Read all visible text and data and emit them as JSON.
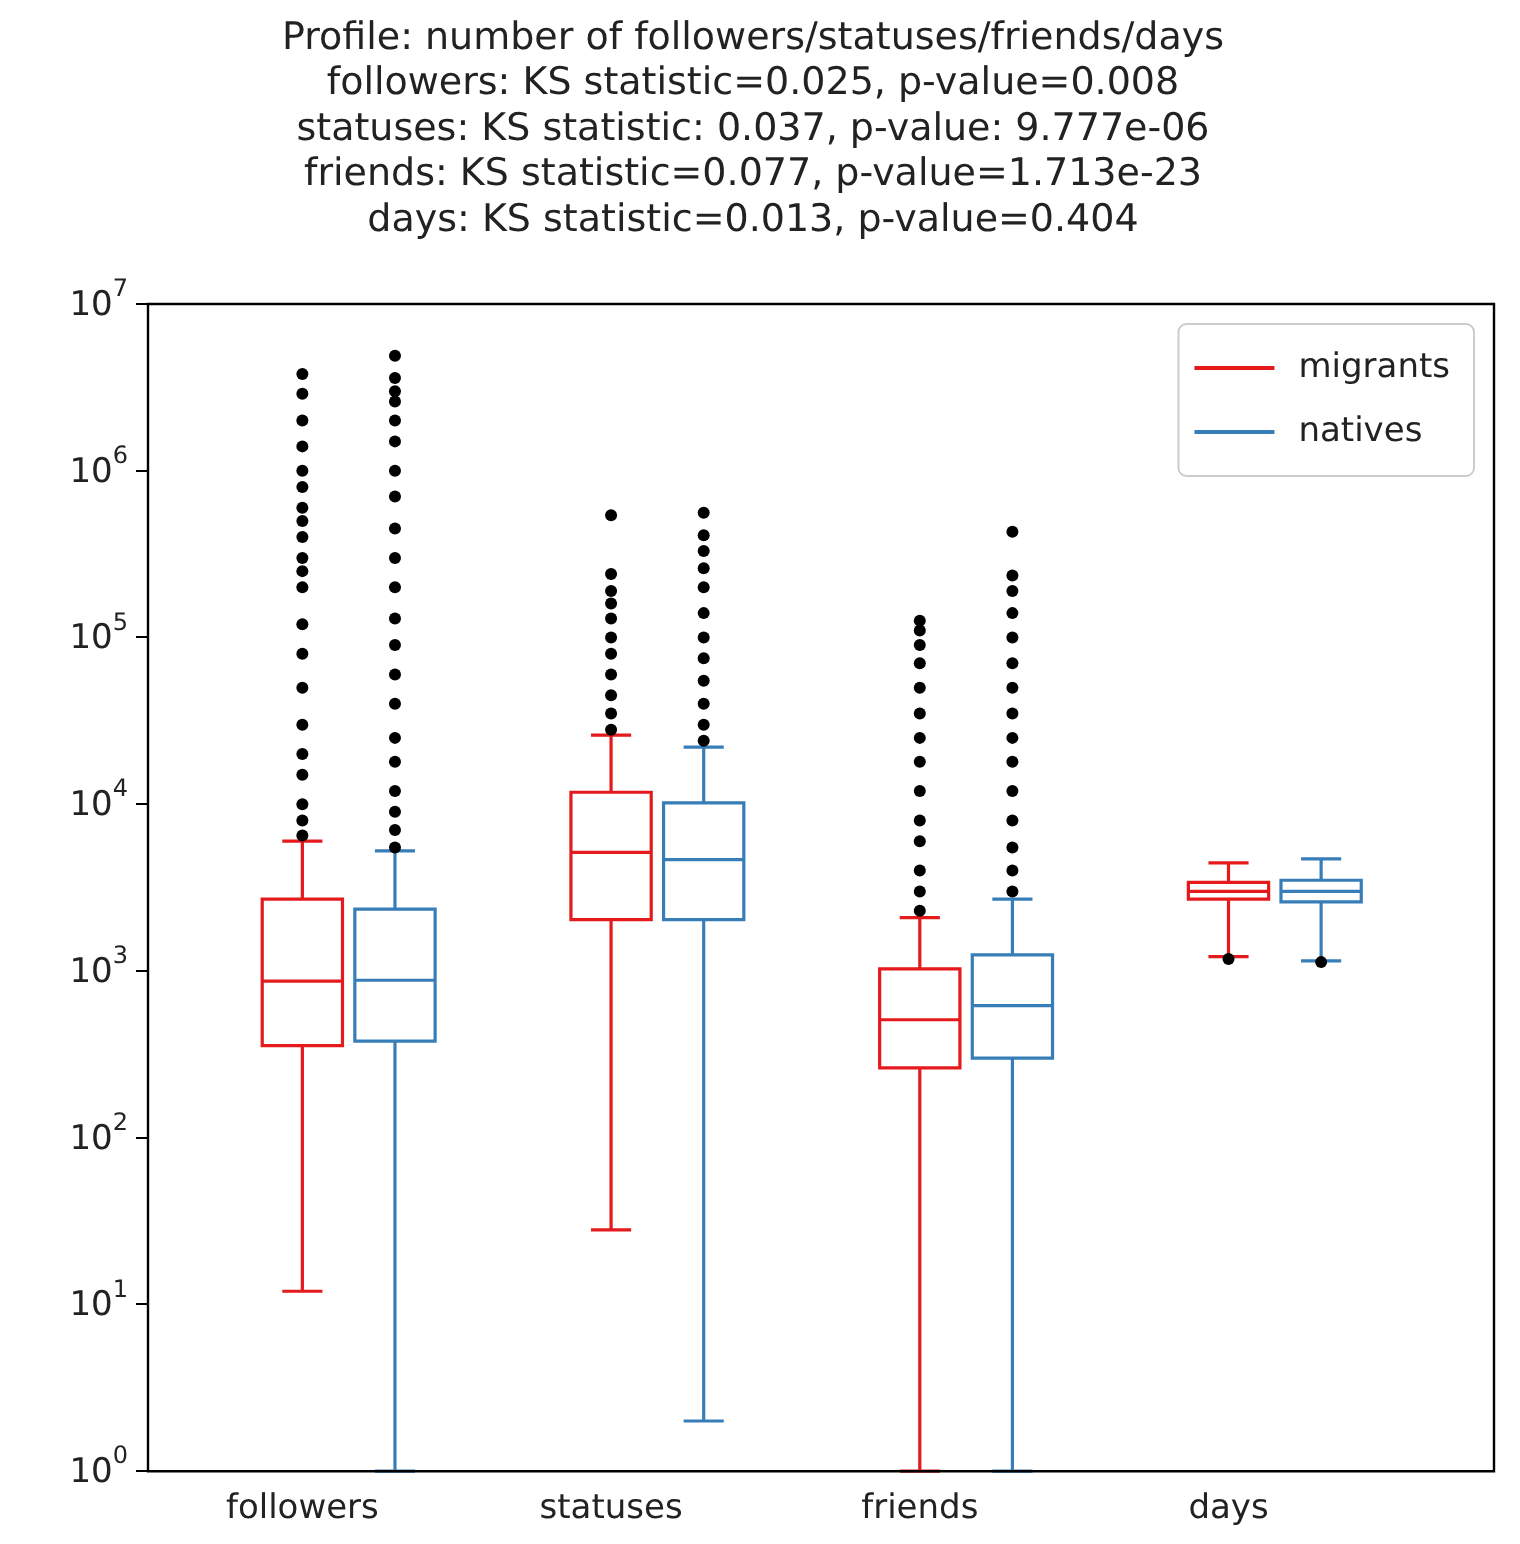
{
  "chart_data": {
    "type": "box",
    "title": "Profile: number of followers/statuses/friends/days",
    "subtitle": "followers: KS statistic=0.025, p-value=0.008\nstatuses: KS statistic: 0.037, p-value: 9.777e-06\nfriends: KS statistic=0.077, p-value=1.713e-23\ndays: KS statistic=0.013, p-value=0.404",
    "categories": [
      "followers",
      "statuses",
      "friends",
      "days"
    ],
    "log": "y",
    "ylim": [
      1,
      10000000
    ],
    "yticks": [
      {
        "value": 1,
        "label": "10$^{0}$"
      },
      {
        "value": 10,
        "label": "10$^{1}$"
      },
      {
        "value": 100,
        "label": "10$^{2}$"
      },
      {
        "value": 1000,
        "label": "10$^{3}$"
      },
      {
        "value": 10000,
        "label": "10$^{4}$"
      },
      {
        "value": 100000,
        "label": "10$^{5}$"
      },
      {
        "value": 1000000,
        "label": "10$^{6}$"
      },
      {
        "value": 10000000,
        "label": "10$^{7}$"
      }
    ],
    "grid": false,
    "legend": "top right",
    "series": [
      {
        "name": "migrants",
        "color": "#e41a1c",
        "boxes": [
          {
            "low": 12,
            "q1": 357,
            "median": 870,
            "q3": 2700,
            "high": 6000,
            "outliers": [
              6500,
              8000,
              10000,
              15000,
              20000,
              30000,
              50000,
              80000,
              120000,
              200000,
              250000,
              300000,
              400000,
              500000,
              600000,
              800000,
              1000000,
              1400000,
              2000000,
              2900000,
              3800000
            ]
          },
          {
            "low": 28,
            "q1": 2030,
            "median": 5150,
            "q3": 11800,
            "high": 26000,
            "outliers": [
              28000,
              35000,
              45000,
              60000,
              80000,
              100000,
              130000,
              160000,
              190000,
              240000,
              540000
            ]
          },
          {
            "low": 1,
            "q1": 262,
            "median": 510,
            "q3": 1030,
            "high": 2090,
            "outliers": [
              2300,
              3000,
              4000,
              6000,
              8000,
              12000,
              18000,
              25000,
              35000,
              50000,
              70000,
              90000,
              110000,
              126000
            ]
          },
          {
            "low": 1220,
            "q1": 2700,
            "median": 3000,
            "q3": 3400,
            "high": 4450,
            "outliers": [
              1180
            ]
          }
        ]
      },
      {
        "name": "natives",
        "color": "#377eb8",
        "boxes": [
          {
            "low": 1,
            "q1": 380,
            "median": 880,
            "q3": 2350,
            "high": 5250,
            "outliers": [
              5500,
              7000,
              9000,
              12000,
              18000,
              25000,
              40000,
              60000,
              90000,
              130000,
              200000,
              300000,
              450000,
              700000,
              1000000,
              1500000,
              2000000,
              2600000,
              3000000,
              3600000,
              4900000
            ]
          },
          {
            "low": 2,
            "q1": 2030,
            "median": 4650,
            "q3": 10200,
            "high": 22000,
            "outliers": [
              24000,
              30000,
              40000,
              55000,
              75000,
              100000,
              140000,
              200000,
              260000,
              330000,
              410000,
              560000
            ]
          },
          {
            "low": 1,
            "q1": 300,
            "median": 620,
            "q3": 1250,
            "high": 2700,
            "outliers": [
              3000,
              4000,
              5500,
              8000,
              12000,
              18000,
              25000,
              35000,
              50000,
              70000,
              100000,
              140000,
              190000,
              235000,
              430000
            ]
          },
          {
            "low": 1150,
            "q1": 2600,
            "median": 3000,
            "q3": 3500,
            "high": 4700,
            "outliers": [
              1130
            ]
          }
        ]
      }
    ]
  }
}
